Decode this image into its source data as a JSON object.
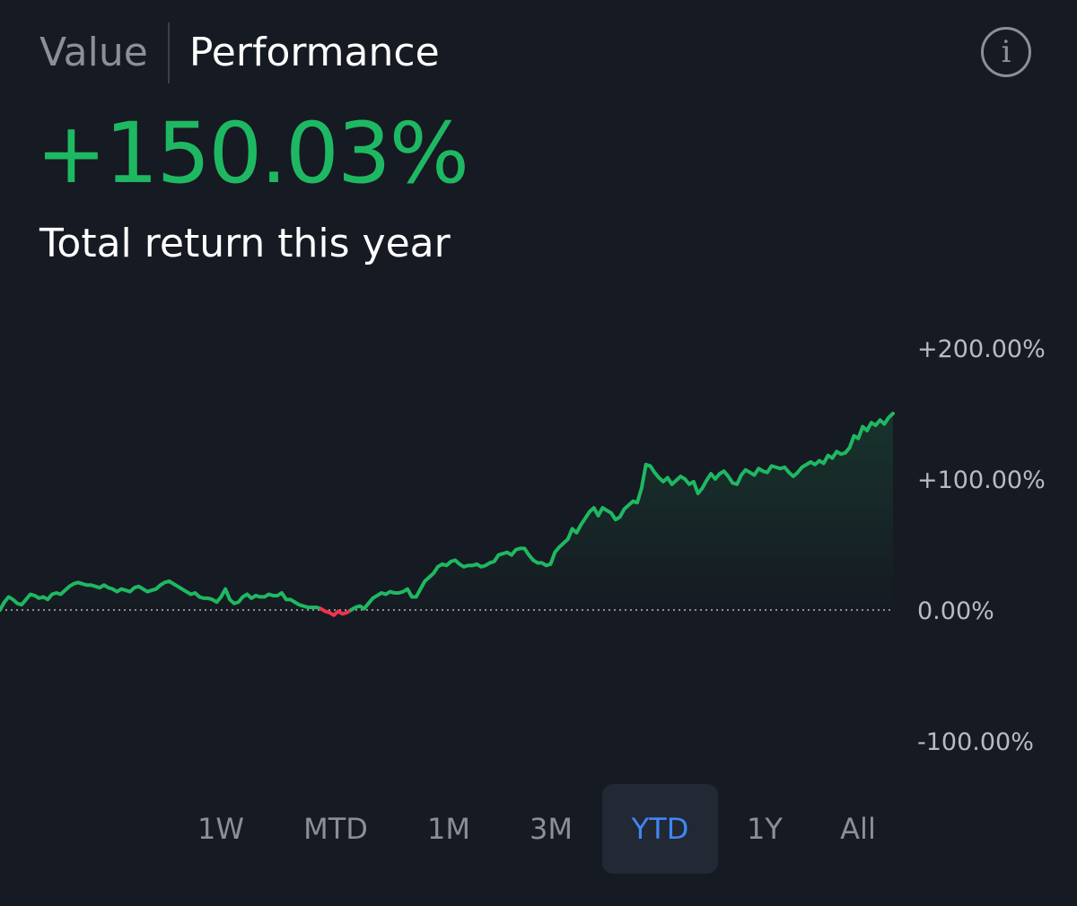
{
  "tabs": {
    "value_label": "Value",
    "performance_label": "Performance",
    "active": "Performance"
  },
  "info_icon": "info-icon",
  "summary": {
    "total_return": "+150.03%",
    "caption": "Total return this year"
  },
  "colors": {
    "background": "#161a22",
    "positive": "#1fb862",
    "negative": "#f0334f",
    "active_range": "#3f87f5",
    "muted_text": "#8b8f96"
  },
  "ranges": [
    {
      "label": "1W",
      "active": false
    },
    {
      "label": "MTD",
      "active": false
    },
    {
      "label": "1M",
      "active": false
    },
    {
      "label": "3M",
      "active": false
    },
    {
      "label": "YTD",
      "active": true
    },
    {
      "label": "1Y",
      "active": false
    },
    {
      "label": "All",
      "active": false
    }
  ],
  "chart_data": {
    "type": "line",
    "title": "",
    "xlabel": "",
    "ylabel": "",
    "ylim": [
      -100,
      200
    ],
    "y_ticks": [
      200,
      100,
      0,
      -100
    ],
    "y_tick_labels": [
      "+200.00%",
      "+100.00%",
      "0.00%",
      "-100.00%"
    ],
    "y_tick_position": "right",
    "baseline": 0,
    "baseline_style": "dotted",
    "area_fill": true,
    "grid": false,
    "series": [
      {
        "values": [
          0,
          6,
          10,
          8,
          5,
          4,
          8,
          12,
          11,
          9,
          10,
          8,
          12,
          13,
          12,
          15,
          18,
          20,
          21,
          20,
          19,
          19,
          18,
          17,
          19,
          17,
          16,
          14,
          16,
          15,
          14,
          17,
          18,
          16,
          14,
          15,
          16,
          19,
          21,
          22,
          20,
          18,
          16,
          14,
          12,
          13,
          10,
          9,
          9,
          8,
          6,
          10,
          16,
          8,
          5,
          6,
          10,
          12,
          9,
          11,
          10,
          10,
          12,
          11,
          11,
          13,
          8,
          8,
          6,
          4,
          3,
          2,
          2,
          2,
          1,
          -1,
          -2,
          -4,
          -1,
          -3,
          -2,
          0,
          2,
          3,
          1,
          5,
          9,
          11,
          13,
          12,
          14,
          13,
          13,
          14,
          16,
          10,
          10,
          16,
          22,
          25,
          28,
          33,
          35,
          34,
          37,
          38,
          35,
          33,
          34,
          34,
          35,
          33,
          34,
          36,
          37,
          42,
          43,
          44,
          42,
          46,
          47,
          47,
          42,
          38,
          36,
          36,
          34,
          35,
          44,
          48,
          51,
          54,
          62,
          59,
          65,
          70,
          75,
          78,
          72,
          78,
          76,
          74,
          69,
          71,
          77,
          80,
          83,
          82,
          93,
          111,
          110,
          105,
          101,
          98,
          101,
          96,
          99,
          102,
          100,
          96,
          98,
          89,
          93,
          99,
          104,
          100,
          104,
          106,
          102,
          97,
          96,
          103,
          107,
          105,
          103,
          108,
          106,
          105,
          110,
          109,
          108,
          109,
          105,
          102,
          105,
          109,
          111,
          113,
          111,
          114,
          112,
          118,
          116,
          121,
          119,
          120,
          124,
          133,
          131,
          140,
          137,
          143,
          141,
          145,
          142,
          147,
          150.03
        ]
      }
    ]
  }
}
